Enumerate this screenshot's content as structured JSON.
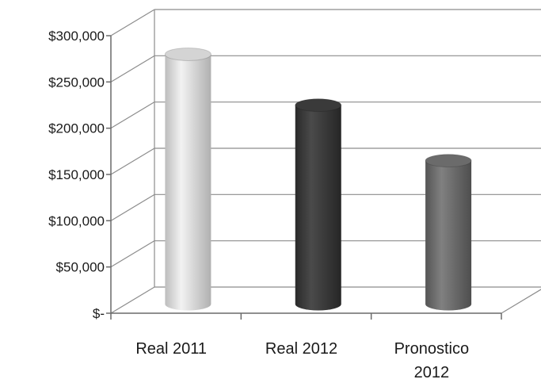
{
  "chart_data": {
    "type": "bar",
    "style": "3d-cylinder",
    "categories": [
      "Real 2011",
      "Real 2012",
      "Pronostico 2012"
    ],
    "category_lines": [
      [
        "Real 2011"
      ],
      [
        "Real 2012"
      ],
      [
        "Pronostico",
        "2012"
      ]
    ],
    "values": [
      270000,
      215000,
      155000
    ],
    "bar_colors": [
      "#d4d4d4",
      "#3a3a3a",
      "#6b6b6b"
    ],
    "y_ticks": [
      0,
      50000,
      100000,
      150000,
      200000,
      250000,
      300000
    ],
    "y_tick_labels": [
      "$-",
      "$50,000",
      "$100,000",
      "$150,000",
      "$200,000",
      "$250,000",
      "$300,000"
    ],
    "ylim": [
      0,
      300000
    ],
    "grid": true,
    "legend": "none"
  }
}
